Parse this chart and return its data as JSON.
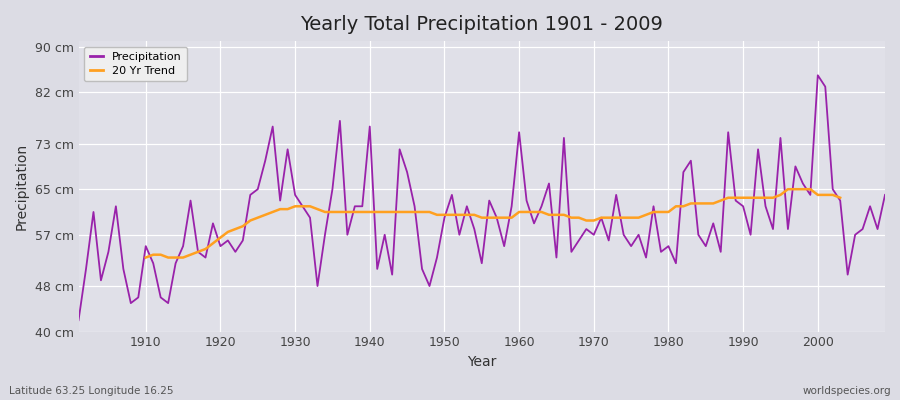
{
  "title": "Yearly Total Precipitation 1901 - 2009",
  "xlabel": "Year",
  "ylabel": "Precipitation",
  "subtitle": "Latitude 63.25 Longitude 16.25",
  "watermark": "worldspecies.org",
  "ylim": [
    40,
    91
  ],
  "yticks": [
    40,
    48,
    57,
    65,
    73,
    82,
    90
  ],
  "ytick_labels": [
    "40 cm",
    "48 cm",
    "57 cm",
    "65 cm",
    "73 cm",
    "82 cm",
    "90 cm"
  ],
  "xlim": [
    1901,
    2009
  ],
  "fig_bg_color": "#dcdce4",
  "plot_bg_color": "#e0e0e8",
  "precip_color": "#9922aa",
  "trend_color": "#ffa020",
  "precip_linewidth": 1.3,
  "trend_linewidth": 1.8,
  "years": [
    1901,
    1902,
    1903,
    1904,
    1905,
    1906,
    1907,
    1908,
    1909,
    1910,
    1911,
    1912,
    1913,
    1914,
    1915,
    1916,
    1917,
    1918,
    1919,
    1920,
    1921,
    1922,
    1923,
    1924,
    1925,
    1926,
    1927,
    1928,
    1929,
    1930,
    1931,
    1932,
    1933,
    1934,
    1935,
    1936,
    1937,
    1938,
    1939,
    1940,
    1941,
    1942,
    1943,
    1944,
    1945,
    1946,
    1947,
    1948,
    1949,
    1950,
    1951,
    1952,
    1953,
    1954,
    1955,
    1956,
    1957,
    1958,
    1959,
    1960,
    1961,
    1962,
    1963,
    1964,
    1965,
    1966,
    1967,
    1968,
    1969,
    1970,
    1971,
    1972,
    1973,
    1974,
    1975,
    1976,
    1977,
    1978,
    1979,
    1980,
    1981,
    1982,
    1983,
    1984,
    1985,
    1986,
    1987,
    1988,
    1989,
    1990,
    1991,
    1992,
    1993,
    1994,
    1995,
    1996,
    1997,
    1998,
    1999,
    2000,
    2001,
    2002,
    2003,
    2004,
    2005,
    2006,
    2007,
    2008,
    2009
  ],
  "precip": [
    42,
    51,
    61,
    49,
    54,
    62,
    51,
    45,
    46,
    55,
    52,
    46,
    45,
    52,
    55,
    63,
    54,
    53,
    59,
    55,
    56,
    54,
    56,
    64,
    65,
    70,
    76,
    63,
    72,
    64,
    62,
    60,
    48,
    57,
    65,
    77,
    57,
    62,
    62,
    76,
    51,
    57,
    50,
    72,
    68,
    62,
    51,
    48,
    53,
    60,
    64,
    57,
    62,
    58,
    52,
    63,
    60,
    55,
    62,
    75,
    63,
    59,
    62,
    66,
    53,
    74,
    54,
    56,
    58,
    57,
    60,
    56,
    64,
    57,
    55,
    57,
    53,
    62,
    54,
    55,
    52,
    68,
    70,
    57,
    55,
    59,
    54,
    75,
    63,
    62,
    57,
    72,
    62,
    58,
    74,
    58,
    69,
    66,
    64,
    85,
    83,
    65,
    63,
    50,
    57,
    58,
    62,
    58,
    64
  ],
  "trend": [
    null,
    null,
    null,
    null,
    null,
    null,
    null,
    null,
    null,
    53,
    53.5,
    53.5,
    53,
    53,
    53,
    53.5,
    54,
    54.5,
    55.5,
    56.5,
    57.5,
    58,
    58.5,
    59.5,
    60,
    60.5,
    61,
    61.5,
    61.5,
    62,
    62,
    62,
    61.5,
    61,
    61,
    61,
    61,
    61,
    61,
    61,
    61,
    61,
    61,
    61,
    61,
    61,
    61,
    61,
    60.5,
    60.5,
    60.5,
    60.5,
    60.5,
    60.5,
    60,
    60,
    60,
    60,
    60,
    61,
    61,
    61,
    61,
    60.5,
    60.5,
    60.5,
    60,
    60,
    59.5,
    59.5,
    60,
    60,
    60,
    60,
    60,
    60,
    60.5,
    61,
    61,
    61,
    62,
    62,
    62.5,
    62.5,
    62.5,
    62.5,
    63,
    63.5,
    63.5,
    63.5,
    63.5,
    63.5,
    63.5,
    63.5,
    64,
    65,
    65,
    65,
    65,
    64,
    64,
    64,
    63.5,
    null,
    null,
    null,
    null,
    null,
    null
  ]
}
